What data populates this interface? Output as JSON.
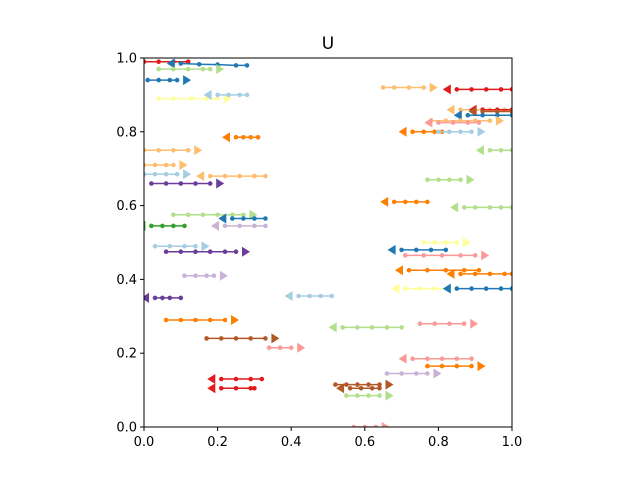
{
  "chart_data": {
    "type": "scatter",
    "title": "U",
    "xlabel": "",
    "ylabel": "",
    "xlim": [
      0,
      1
    ],
    "ylim": [
      0,
      1
    ],
    "xticks": [
      "0.0",
      "0.2",
      "0.4",
      "0.6",
      "0.8",
      "1.0"
    ],
    "yticks": [
      "0.0",
      "0.2",
      "0.4",
      "0.6",
      "0.8",
      "1.0"
    ],
    "grid": false,
    "legend": "none",
    "series": [
      {
        "color": "#e31a1c",
        "head": "left",
        "x": [
          0.0,
          0.04,
          0.08,
          0.12
        ],
        "y": [
          0.99,
          0.99,
          0.99,
          0.99
        ]
      },
      {
        "color": "#1f78b4",
        "head": "left",
        "x": [
          0.1,
          0.15,
          0.2,
          0.25,
          0.28
        ],
        "y": [
          0.985,
          0.983,
          0.982,
          0.98,
          0.98
        ]
      },
      {
        "color": "#b2df8a",
        "head": "right",
        "x": [
          0.04,
          0.08,
          0.12,
          0.16,
          0.18
        ],
        "y": [
          0.97,
          0.97,
          0.97,
          0.97,
          0.97
        ]
      },
      {
        "color": "#1f78b4",
        "head": "right",
        "x": [
          0.01,
          0.04,
          0.07,
          0.09
        ],
        "y": [
          0.94,
          0.94,
          0.94,
          0.94
        ]
      },
      {
        "color": "#ffff99",
        "head": "right",
        "x": [
          0.04,
          0.08,
          0.13,
          0.17,
          0.2
        ],
        "y": [
          0.89,
          0.89,
          0.89,
          0.89,
          0.89
        ]
      },
      {
        "color": "#a6cee3",
        "head": "left",
        "x": [
          0.2,
          0.23,
          0.26,
          0.28
        ],
        "y": [
          0.9,
          0.9,
          0.9,
          0.9
        ]
      },
      {
        "color": "#fdbf6f",
        "head": "right",
        "x": [
          0.65,
          0.68,
          0.72,
          0.76
        ],
        "y": [
          0.92,
          0.92,
          0.92,
          0.92
        ]
      },
      {
        "color": "#e31a1c",
        "head": "left",
        "x": [
          0.85,
          0.89,
          0.93,
          0.97,
          1.0
        ],
        "y": [
          0.915,
          0.915,
          0.915,
          0.915,
          0.915
        ]
      },
      {
        "color": "#fdbf6f",
        "head": "left",
        "x": [
          0.86,
          0.9,
          0.94,
          0.98
        ],
        "y": [
          0.86,
          0.86,
          0.86,
          0.86
        ]
      },
      {
        "color": "#e31a1c",
        "head": "left",
        "x": [
          0.92,
          0.96,
          1.0
        ],
        "y": [
          0.86,
          0.86,
          0.86
        ]
      },
      {
        "color": "#b15928",
        "head": "left",
        "x": [
          0.92,
          0.96,
          1.0
        ],
        "y": [
          0.855,
          0.855,
          0.855
        ]
      },
      {
        "color": "#1f78b4",
        "head": "left",
        "x": [
          0.88,
          0.92,
          0.96,
          1.0
        ],
        "y": [
          0.845,
          0.845,
          0.845,
          0.845
        ]
      },
      {
        "color": "#fdbf6f",
        "head": "right",
        "x": [
          0.78,
          0.82,
          0.86,
          0.9,
          0.94
        ],
        "y": [
          0.83,
          0.83,
          0.83,
          0.83,
          0.83
        ]
      },
      {
        "color": "#fb9a99",
        "head": "left",
        "x": [
          0.8,
          0.84,
          0.88,
          0.91
        ],
        "y": [
          0.825,
          0.825,
          0.825,
          0.825
        ]
      },
      {
        "color": "#ff7f00",
        "head": "left",
        "x": [
          0.73,
          0.76,
          0.79,
          0.81
        ],
        "y": [
          0.8,
          0.8,
          0.8,
          0.8
        ]
      },
      {
        "color": "#a6cee3",
        "head": "right",
        "x": [
          0.8,
          0.83,
          0.86,
          0.89
        ],
        "y": [
          0.8,
          0.8,
          0.8,
          0.8
        ]
      },
      {
        "color": "#ff7f00",
        "head": "left",
        "x": [
          0.25,
          0.27,
          0.29,
          0.31
        ],
        "y": [
          0.785,
          0.785,
          0.785,
          0.785
        ]
      },
      {
        "color": "#fdbf6f",
        "head": "right",
        "x": [
          0.0,
          0.04,
          0.08,
          0.12
        ],
        "y": [
          0.75,
          0.75,
          0.75,
          0.75
        ]
      },
      {
        "color": "#b2df8a",
        "head": "left",
        "x": [
          0.94,
          0.97,
          1.0
        ],
        "y": [
          0.75,
          0.75,
          0.75
        ]
      },
      {
        "color": "#fdbf6f",
        "head": "right",
        "x": [
          0.0,
          0.03,
          0.06,
          0.08
        ],
        "y": [
          0.71,
          0.71,
          0.71,
          0.71
        ]
      },
      {
        "color": "#a6cee3",
        "head": "right",
        "x": [
          0.0,
          0.03,
          0.06,
          0.09
        ],
        "y": [
          0.685,
          0.685,
          0.685,
          0.685
        ]
      },
      {
        "color": "#fdbf6f",
        "head": "left",
        "x": [
          0.18,
          0.22,
          0.26,
          0.3,
          0.33
        ],
        "y": [
          0.68,
          0.68,
          0.68,
          0.68,
          0.68
        ]
      },
      {
        "color": "#b2df8a",
        "head": "right",
        "x": [
          0.77,
          0.8,
          0.83,
          0.86
        ],
        "y": [
          0.67,
          0.67,
          0.67,
          0.67
        ]
      },
      {
        "color": "#6a3d9a",
        "head": "right",
        "x": [
          0.02,
          0.06,
          0.1,
          0.14,
          0.18
        ],
        "y": [
          0.66,
          0.66,
          0.66,
          0.66,
          0.66
        ]
      },
      {
        "color": "#ff7f00",
        "head": "left",
        "x": [
          0.68,
          0.71,
          0.74,
          0.77
        ],
        "y": [
          0.61,
          0.61,
          0.61,
          0.61
        ]
      },
      {
        "color": "#b2df8a",
        "head": "left",
        "x": [
          0.87,
          0.9,
          0.94,
          0.97,
          1.0
        ],
        "y": [
          0.595,
          0.595,
          0.595,
          0.595,
          0.595
        ]
      },
      {
        "color": "#b2df8a",
        "head": "right",
        "x": [
          0.08,
          0.12,
          0.16,
          0.2,
          0.24,
          0.27
        ],
        "y": [
          0.575,
          0.575,
          0.575,
          0.575,
          0.575,
          0.575
        ]
      },
      {
        "color": "#1f78b4",
        "head": "left",
        "x": [
          0.24,
          0.27,
          0.3,
          0.33
        ],
        "y": [
          0.565,
          0.565,
          0.565,
          0.565
        ]
      },
      {
        "color": "#cab2d6",
        "head": "left",
        "x": [
          0.22,
          0.26,
          0.3,
          0.33
        ],
        "y": [
          0.545,
          0.545,
          0.545,
          0.545
        ]
      },
      {
        "color": "#33a02c",
        "head": "left",
        "x": [
          0.02,
          0.05,
          0.08,
          0.11
        ],
        "y": [
          0.545,
          0.545,
          0.545,
          0.545
        ]
      },
      {
        "color": "#a6cee3",
        "head": "right",
        "x": [
          0.03,
          0.07,
          0.11,
          0.14
        ],
        "y": [
          0.49,
          0.49,
          0.49,
          0.49
        ]
      },
      {
        "color": "#6a3d9a",
        "head": "right",
        "x": [
          0.06,
          0.1,
          0.14,
          0.18,
          0.22,
          0.25
        ],
        "y": [
          0.475,
          0.475,
          0.475,
          0.475,
          0.475,
          0.475
        ]
      },
      {
        "color": "#ffff99",
        "head": "right",
        "x": [
          0.76,
          0.79,
          0.82,
          0.85
        ],
        "y": [
          0.5,
          0.5,
          0.5,
          0.5
        ]
      },
      {
        "color": "#1f78b4",
        "head": "left",
        "x": [
          0.7,
          0.74,
          0.78,
          0.82
        ],
        "y": [
          0.48,
          0.48,
          0.48,
          0.48
        ]
      },
      {
        "color": "#fb9a99",
        "head": "right",
        "x": [
          0.71,
          0.76,
          0.81,
          0.86,
          0.9
        ],
        "y": [
          0.465,
          0.465,
          0.465,
          0.465,
          0.465
        ]
      },
      {
        "color": "#ff7f00",
        "head": "left",
        "x": [
          0.72,
          0.77,
          0.82,
          0.87,
          0.91
        ],
        "y": [
          0.425,
          0.425,
          0.425,
          0.425,
          0.425
        ]
      },
      {
        "color": "#ff7f00",
        "head": "left",
        "x": [
          0.86,
          0.9,
          0.94,
          0.98,
          1.0
        ],
        "y": [
          0.415,
          0.415,
          0.415,
          0.415,
          0.415
        ]
      },
      {
        "color": "#cab2d6",
        "head": "right",
        "x": [
          0.11,
          0.14,
          0.17,
          0.19
        ],
        "y": [
          0.41,
          0.41,
          0.41,
          0.41
        ]
      },
      {
        "color": "#ffff99",
        "head": "left",
        "x": [
          0.71,
          0.75,
          0.79,
          0.83
        ],
        "y": [
          0.375,
          0.375,
          0.375,
          0.375
        ]
      },
      {
        "color": "#1f78b4",
        "head": "left",
        "x": [
          0.85,
          0.89,
          0.93,
          0.97,
          1.0
        ],
        "y": [
          0.375,
          0.375,
          0.375,
          0.375,
          0.375
        ]
      },
      {
        "color": "#6a3d9a",
        "head": "left",
        "x": [
          0.03,
          0.05,
          0.07,
          0.1
        ],
        "y": [
          0.35,
          0.35,
          0.35,
          0.35
        ]
      },
      {
        "color": "#a6cee3",
        "head": "left",
        "x": [
          0.42,
          0.45,
          0.48,
          0.51
        ],
        "y": [
          0.355,
          0.355,
          0.355,
          0.355
        ]
      },
      {
        "color": "#ff7f00",
        "head": "right",
        "x": [
          0.06,
          0.1,
          0.14,
          0.18,
          0.22
        ],
        "y": [
          0.29,
          0.29,
          0.29,
          0.29,
          0.29
        ]
      },
      {
        "color": "#fb9a99",
        "head": "right",
        "x": [
          0.75,
          0.79,
          0.83,
          0.87
        ],
        "y": [
          0.28,
          0.28,
          0.28,
          0.28
        ]
      },
      {
        "color": "#b2df8a",
        "head": "left",
        "x": [
          0.54,
          0.58,
          0.62,
          0.66,
          0.7
        ],
        "y": [
          0.27,
          0.27,
          0.27,
          0.27,
          0.27
        ]
      },
      {
        "color": "#b15928",
        "head": "right",
        "x": [
          0.17,
          0.21,
          0.25,
          0.29,
          0.33
        ],
        "y": [
          0.24,
          0.24,
          0.24,
          0.24,
          0.24
        ]
      },
      {
        "color": "#fb9a99",
        "head": "right",
        "x": [
          0.34,
          0.37,
          0.4
        ],
        "y": [
          0.215,
          0.215,
          0.215
        ]
      },
      {
        "color": "#fb9a99",
        "head": "left",
        "x": [
          0.73,
          0.77,
          0.81,
          0.85,
          0.89
        ],
        "y": [
          0.185,
          0.185,
          0.185,
          0.185,
          0.185
        ]
      },
      {
        "color": "#ff7f00",
        "head": "right",
        "x": [
          0.77,
          0.81,
          0.85,
          0.89
        ],
        "y": [
          0.165,
          0.165,
          0.165,
          0.165
        ]
      },
      {
        "color": "#cab2d6",
        "head": "right",
        "x": [
          0.66,
          0.7,
          0.74,
          0.77
        ],
        "y": [
          0.145,
          0.145,
          0.145,
          0.145
        ]
      },
      {
        "color": "#e31a1c",
        "head": "left",
        "x": [
          0.21,
          0.25,
          0.29,
          0.32
        ],
        "y": [
          0.13,
          0.13,
          0.13,
          0.13
        ]
      },
      {
        "color": "#e31a1c",
        "head": "left",
        "x": [
          0.21,
          0.25,
          0.29,
          0.3
        ],
        "y": [
          0.105,
          0.105,
          0.105,
          0.105
        ]
      },
      {
        "color": "#b15928",
        "head": "right",
        "x": [
          0.52,
          0.55,
          0.58,
          0.61,
          0.64
        ],
        "y": [
          0.115,
          0.115,
          0.115,
          0.115,
          0.115
        ]
      },
      {
        "color": "#b15928",
        "head": "left",
        "x": [
          0.56,
          0.59,
          0.62,
          0.64
        ],
        "y": [
          0.105,
          0.105,
          0.105,
          0.105
        ]
      },
      {
        "color": "#b2df8a",
        "head": "right",
        "x": [
          0.55,
          0.58,
          0.61,
          0.64
        ],
        "y": [
          0.085,
          0.085,
          0.085,
          0.085
        ]
      },
      {
        "color": "#fb9a99",
        "head": "right",
        "x": [
          0.57,
          0.6,
          0.63
        ],
        "y": [
          0.0,
          0.0,
          0.0
        ]
      }
    ]
  }
}
